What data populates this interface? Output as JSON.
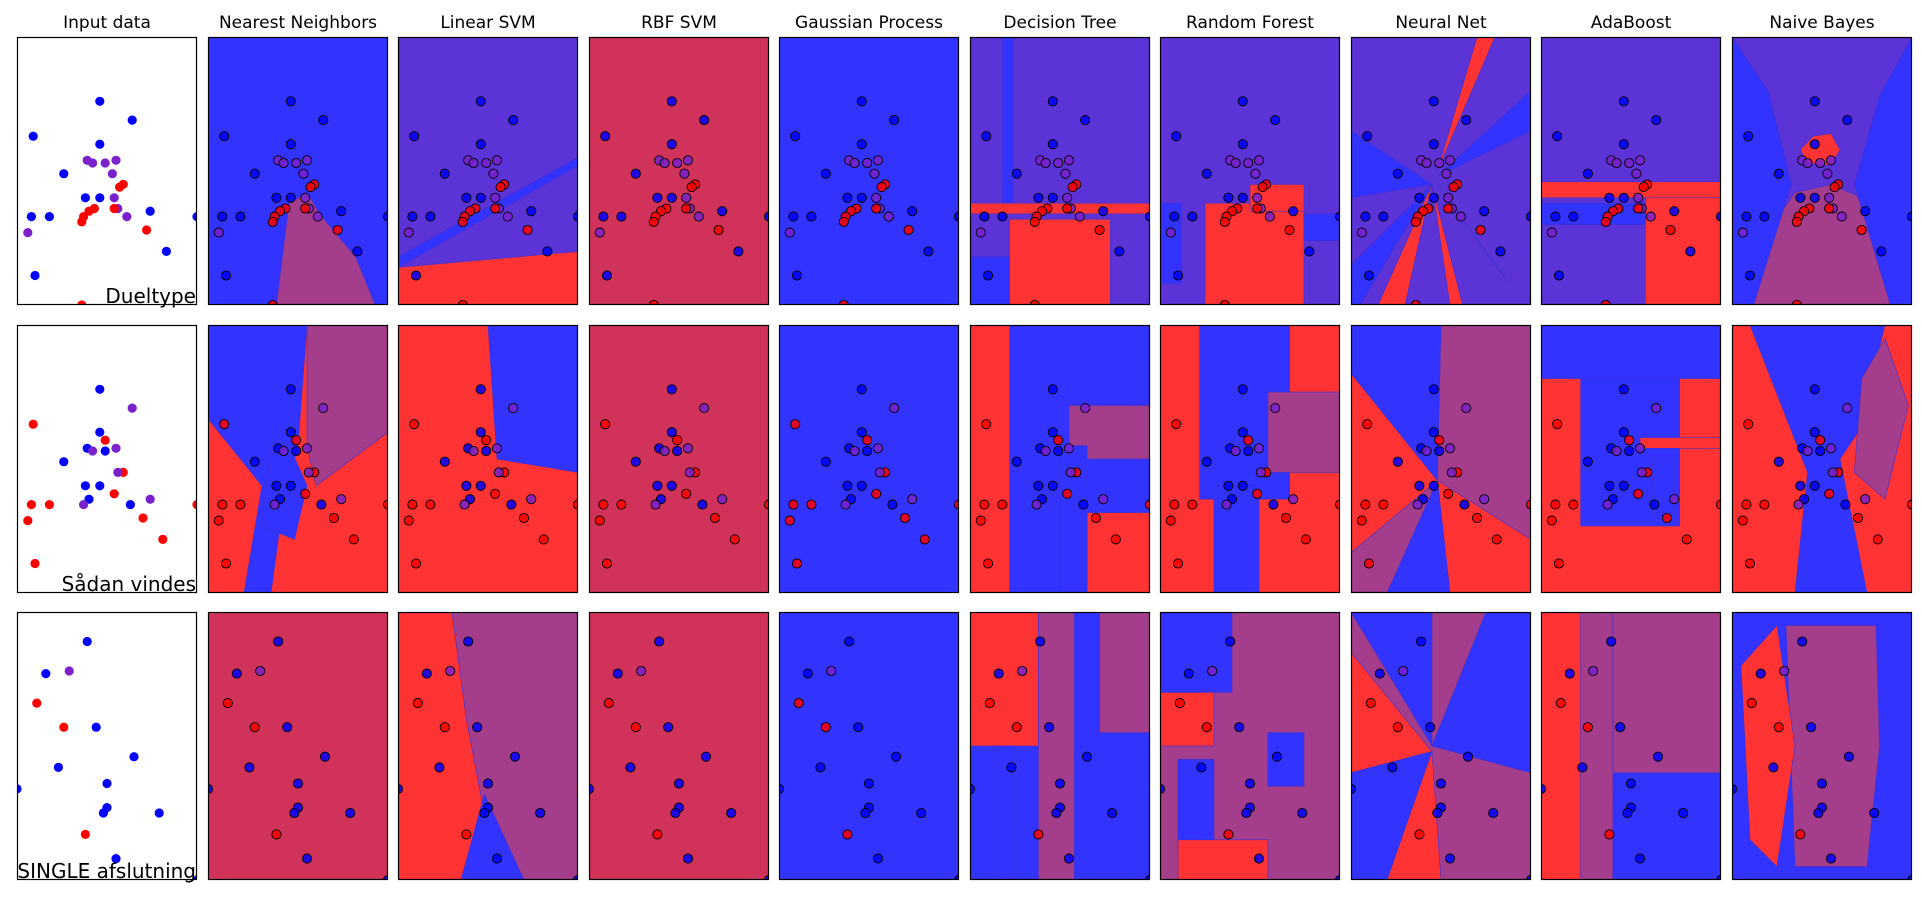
{
  "figure": {
    "column_titles": [
      "Input data",
      "Nearest Neighbors",
      "Linear SVM",
      "RBF SVM",
      "Gaussian Process",
      "Decision Tree",
      "Random Forest",
      "Neural Net",
      "AdaBoost",
      "Naive Bayes"
    ],
    "row_labels": [
      "Dueltype",
      "Sådan vindes",
      "SINGLE afslutning"
    ]
  },
  "colors": {
    "red": "#ff0000",
    "blue": "#0000ff",
    "purple": "#7a21cc",
    "bg_blue": "#3333ff",
    "bg_red": "#ff3333",
    "bg_mix": "#d1325a",
    "bg_violet": "#5b33d6",
    "bg_plum": "#a33d8c"
  },
  "chart_data": [
    {
      "type": "scatter",
      "title": "Dueltype",
      "classifiers": [
        "Nearest Neighbors",
        "Linear SVM",
        "RBF SVM",
        "Gaussian Process",
        "Decision Tree",
        "Random Forest",
        "Neural Net",
        "AdaBoost",
        "Naive Bayes"
      ],
      "points": [
        {
          "x": 0.46,
          "y": 0.76,
          "class": "blue"
        },
        {
          "x": 0.64,
          "y": 0.69,
          "class": "blue"
        },
        {
          "x": 0.09,
          "y": 0.63,
          "class": "blue"
        },
        {
          "x": 0.46,
          "y": 0.6,
          "class": "blue"
        },
        {
          "x": 0.39,
          "y": 0.54,
          "class": "purple"
        },
        {
          "x": 0.42,
          "y": 0.53,
          "class": "purple"
        },
        {
          "x": 0.49,
          "y": 0.53,
          "class": "purple"
        },
        {
          "x": 0.55,
          "y": 0.54,
          "class": "purple"
        },
        {
          "x": 0.26,
          "y": 0.49,
          "class": "blue"
        },
        {
          "x": 0.53,
          "y": 0.49,
          "class": "purple"
        },
        {
          "x": 0.59,
          "y": 0.45,
          "class": "red"
        },
        {
          "x": 0.57,
          "y": 0.44,
          "class": "red"
        },
        {
          "x": 0.38,
          "y": 0.4,
          "class": "blue"
        },
        {
          "x": 0.46,
          "y": 0.4,
          "class": "blue"
        },
        {
          "x": 0.54,
          "y": 0.4,
          "class": "purple"
        },
        {
          "x": 0.43,
          "y": 0.36,
          "class": "red"
        },
        {
          "x": 0.56,
          "y": 0.36,
          "class": "purple"
        },
        {
          "x": 0.4,
          "y": 0.35,
          "class": "red"
        },
        {
          "x": 0.54,
          "y": 0.36,
          "class": "red"
        },
        {
          "x": 0.37,
          "y": 0.33,
          "class": "red"
        },
        {
          "x": 0.74,
          "y": 0.35,
          "class": "blue"
        },
        {
          "x": 0.08,
          "y": 0.33,
          "class": "blue"
        },
        {
          "x": 0.18,
          "y": 0.33,
          "class": "blue"
        },
        {
          "x": 0.61,
          "y": 0.33,
          "class": "purple"
        },
        {
          "x": 0.36,
          "y": 0.31,
          "class": "red"
        },
        {
          "x": 1.0,
          "y": 0.33,
          "class": "blue"
        },
        {
          "x": 0.72,
          "y": 0.28,
          "class": "red"
        },
        {
          "x": 0.06,
          "y": 0.27,
          "class": "purple"
        },
        {
          "x": 0.83,
          "y": 0.2,
          "class": "blue"
        },
        {
          "x": 0.1,
          "y": 0.11,
          "class": "blue"
        },
        {
          "x": 0.36,
          "y": 0.0,
          "class": "red"
        }
      ]
    },
    {
      "type": "scatter",
      "title": "Sådan vindes",
      "classifiers": [
        "Nearest Neighbors",
        "Linear SVM",
        "RBF SVM",
        "Gaussian Process",
        "Decision Tree",
        "Random Forest",
        "Neural Net",
        "AdaBoost",
        "Naive Bayes"
      ],
      "points": [
        {
          "x": 0.46,
          "y": 0.76,
          "class": "blue"
        },
        {
          "x": 0.64,
          "y": 0.69,
          "class": "purple"
        },
        {
          "x": 0.09,
          "y": 0.63,
          "class": "red"
        },
        {
          "x": 0.46,
          "y": 0.6,
          "class": "blue"
        },
        {
          "x": 0.49,
          "y": 0.57,
          "class": "red"
        },
        {
          "x": 0.39,
          "y": 0.54,
          "class": "blue"
        },
        {
          "x": 0.42,
          "y": 0.53,
          "class": "purple"
        },
        {
          "x": 0.49,
          "y": 0.53,
          "class": "blue"
        },
        {
          "x": 0.55,
          "y": 0.54,
          "class": "purple"
        },
        {
          "x": 0.26,
          "y": 0.49,
          "class": "blue"
        },
        {
          "x": 0.59,
          "y": 0.45,
          "class": "red"
        },
        {
          "x": 0.56,
          "y": 0.45,
          "class": "purple"
        },
        {
          "x": 0.38,
          "y": 0.4,
          "class": "blue"
        },
        {
          "x": 0.46,
          "y": 0.4,
          "class": "blue"
        },
        {
          "x": 0.54,
          "y": 0.37,
          "class": "red"
        },
        {
          "x": 0.4,
          "y": 0.35,
          "class": "blue"
        },
        {
          "x": 0.63,
          "y": 0.33,
          "class": "blue"
        },
        {
          "x": 0.74,
          "y": 0.35,
          "class": "purple"
        },
        {
          "x": 0.08,
          "y": 0.33,
          "class": "red"
        },
        {
          "x": 0.18,
          "y": 0.33,
          "class": "red"
        },
        {
          "x": 0.37,
          "y": 0.33,
          "class": "purple"
        },
        {
          "x": 1.0,
          "y": 0.33,
          "class": "red"
        },
        {
          "x": 0.06,
          "y": 0.27,
          "class": "red"
        },
        {
          "x": 0.7,
          "y": 0.28,
          "class": "red"
        },
        {
          "x": 0.81,
          "y": 0.2,
          "class": "red"
        },
        {
          "x": 0.1,
          "y": 0.11,
          "class": "red"
        }
      ]
    },
    {
      "type": "scatter",
      "title": "SINGLE afslutning",
      "classifiers": [
        "Nearest Neighbors",
        "Linear SVM",
        "RBF SVM",
        "Gaussian Process",
        "Decision Tree",
        "Random Forest",
        "Neural Net",
        "AdaBoost",
        "Naive Bayes"
      ],
      "points": [
        {
          "x": 0.39,
          "y": 0.89,
          "class": "blue"
        },
        {
          "x": 0.16,
          "y": 0.77,
          "class": "blue"
        },
        {
          "x": 0.29,
          "y": 0.78,
          "class": "purple"
        },
        {
          "x": 0.11,
          "y": 0.66,
          "class": "red"
        },
        {
          "x": 0.26,
          "y": 0.57,
          "class": "red"
        },
        {
          "x": 0.44,
          "y": 0.57,
          "class": "blue"
        },
        {
          "x": 0.65,
          "y": 0.46,
          "class": "blue"
        },
        {
          "x": 0.23,
          "y": 0.42,
          "class": "blue"
        },
        {
          "x": 0.5,
          "y": 0.36,
          "class": "blue"
        },
        {
          "x": 0.0,
          "y": 0.34,
          "class": "blue"
        },
        {
          "x": 0.5,
          "y": 0.27,
          "class": "blue"
        },
        {
          "x": 0.48,
          "y": 0.25,
          "class": "blue"
        },
        {
          "x": 0.79,
          "y": 0.25,
          "class": "blue"
        },
        {
          "x": 0.38,
          "y": 0.17,
          "class": "red"
        },
        {
          "x": 0.55,
          "y": 0.08,
          "class": "blue"
        },
        {
          "x": 1.0,
          "y": 0.0,
          "class": "blue"
        }
      ]
    }
  ]
}
